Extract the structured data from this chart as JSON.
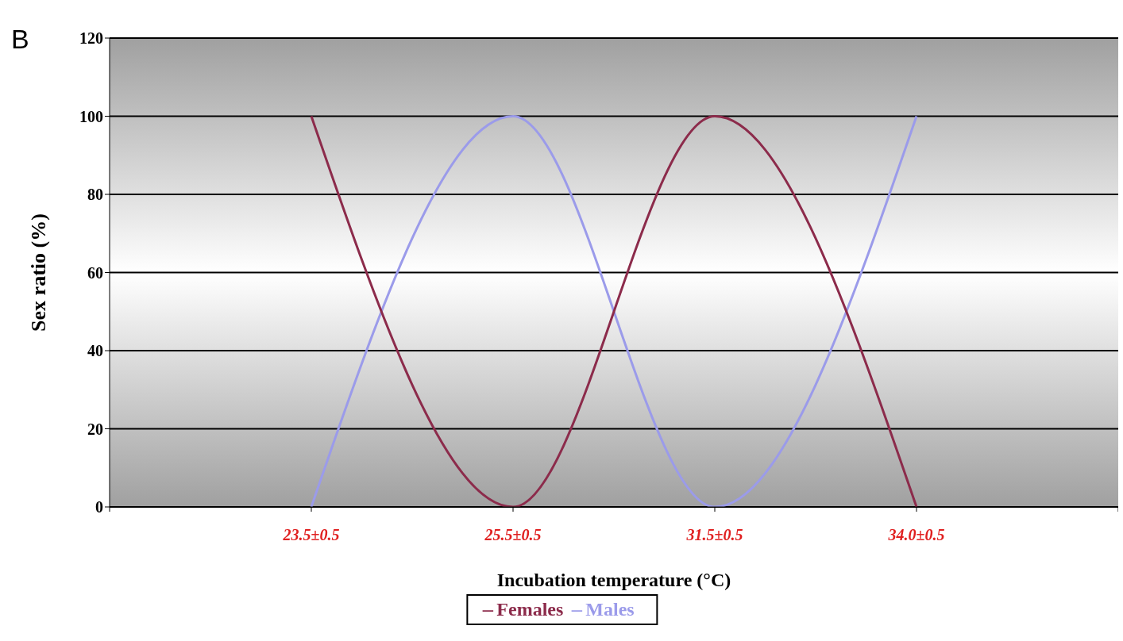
{
  "chart_data": {
    "type": "line",
    "annotations": [
      "B"
    ],
    "xlabel": "Incubation temperature (°C)",
    "ylabel": "Sex ratio (%)",
    "categories": [
      null,
      "23.5±0.5",
      "25.5±0.5",
      "31.5±0.5",
      "34.0±0.5",
      null
    ],
    "series": [
      {
        "name": "Males",
        "color": "#9b9bea",
        "values": [
          null,
          0,
          100,
          0,
          100,
          null
        ]
      },
      {
        "name": "Females",
        "color": "#8c2b4b",
        "values": [
          null,
          100,
          0,
          100,
          0,
          null
        ]
      }
    ],
    "ylim": [
      0,
      120
    ],
    "yticks": [
      0,
      20,
      40,
      60,
      80,
      100,
      120
    ],
    "grid": "y",
    "legend": "bottom",
    "marker": "none"
  }
}
